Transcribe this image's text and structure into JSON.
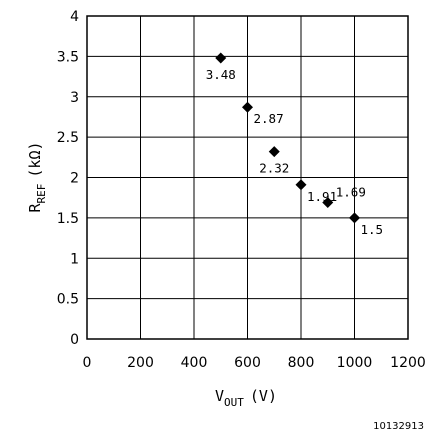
{
  "chart_data": {
    "type": "scatter",
    "title": "",
    "xlabel_main": "V",
    "xlabel_sub": "OUT",
    "xlabel_unit": "(V)",
    "ylabel_main": "R",
    "ylabel_sub": "REF",
    "ylabel_unit": "(kΩ)",
    "xlim": [
      0,
      1200
    ],
    "ylim": [
      0,
      4
    ],
    "grid": true,
    "x_ticks": [
      "0",
      "200",
      "400",
      "600",
      "800",
      "1000",
      "1200"
    ],
    "y_ticks": [
      "0",
      "0.5",
      "1",
      "1.5",
      "2",
      "2.5",
      "3",
      "3.5",
      "4"
    ],
    "x": [
      500,
      600,
      700,
      800,
      900,
      1000
    ],
    "y": [
      3.48,
      2.87,
      2.32,
      1.91,
      1.69,
      1.5
    ],
    "point_labels": [
      "3.48",
      "2.87",
      "2.32",
      "1.91",
      "1.69",
      "1.5"
    ],
    "marker": "diamond",
    "color": "#000000"
  },
  "figure_id": "10132913"
}
